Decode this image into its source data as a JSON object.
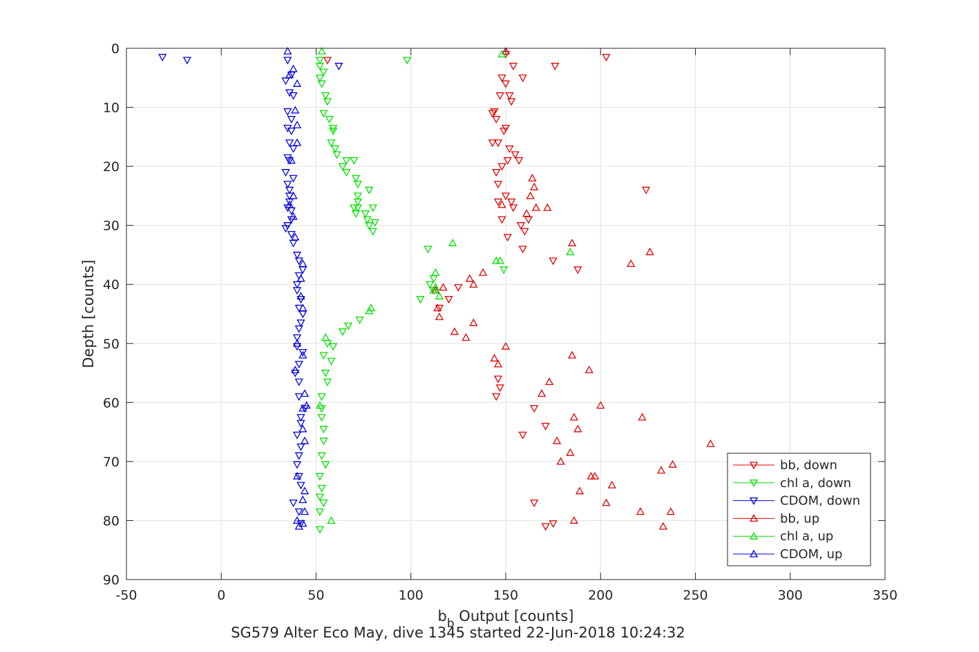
{
  "chart_data": {
    "type": "scatter",
    "title": "",
    "xlabel_main": "b",
    "xlabel_sub": "b",
    "xlabel_rest": " Output [counts]",
    "ylabel": "Depth [counts]",
    "caption": "SG579 Alter Eco May, dive 1345 started 22-Jun-2018 10:24:32",
    "xlim": [
      -50,
      350
    ],
    "ylim": [
      0,
      90
    ],
    "y_reversed": true,
    "xticks": [
      -50,
      0,
      50,
      100,
      150,
      200,
      250,
      300,
      350
    ],
    "xtick_labels": [
      "-50",
      "0",
      "50",
      "100",
      "150",
      "200",
      "250",
      "300",
      "350"
    ],
    "yticks": [
      0,
      10,
      20,
      30,
      40,
      50,
      60,
      70,
      80,
      90
    ],
    "ytick_labels": [
      "0",
      "10",
      "20",
      "30",
      "40",
      "50",
      "60",
      "70",
      "80",
      "90"
    ],
    "grid": true,
    "legend_position": "lower-right",
    "series": [
      {
        "name": "bb, down",
        "color": "#e00000",
        "marker": "triangle-down",
        "points": [
          [
            56,
            2
          ],
          [
            203,
            1.5
          ],
          [
            176,
            3
          ],
          [
            150,
            1
          ],
          [
            154,
            3
          ],
          [
            159,
            5
          ],
          [
            148,
            5
          ],
          [
            150,
            6
          ],
          [
            152,
            8
          ],
          [
            147,
            8
          ],
          [
            153,
            9
          ],
          [
            144,
            10.7
          ],
          [
            143,
            11
          ],
          [
            145,
            12
          ],
          [
            150,
            13.5
          ],
          [
            149,
            14
          ],
          [
            146,
            16
          ],
          [
            143,
            16
          ],
          [
            152,
            17
          ],
          [
            155,
            18
          ],
          [
            157,
            19
          ],
          [
            151,
            19
          ],
          [
            148,
            20
          ],
          [
            145,
            21
          ],
          [
            146,
            23
          ],
          [
            224,
            24
          ],
          [
            150,
            25
          ],
          [
            153,
            26
          ],
          [
            146,
            26
          ],
          [
            154,
            27
          ],
          [
            148,
            29
          ],
          [
            162,
            29
          ],
          [
            158,
            30
          ],
          [
            160,
            31
          ],
          [
            151,
            32
          ],
          [
            159,
            34
          ],
          [
            175,
            36
          ],
          [
            188,
            37.5
          ],
          [
            125,
            40.5
          ],
          [
            120,
            42.5
          ],
          [
            115,
            44
          ],
          [
            146,
            56
          ],
          [
            147,
            57.5
          ],
          [
            145,
            59
          ],
          [
            165,
            61
          ],
          [
            171,
            64
          ],
          [
            159,
            65.5
          ],
          [
            165,
            77
          ],
          [
            171,
            81
          ],
          [
            175,
            80.5
          ]
        ]
      },
      {
        "name": "chl a, down",
        "color": "#00e000",
        "marker": "triangle-down",
        "points": [
          [
            98,
            2
          ],
          [
            52,
            2
          ],
          [
            52,
            3
          ],
          [
            54,
            4
          ],
          [
            52,
            5
          ],
          [
            53,
            6
          ],
          [
            55,
            8
          ],
          [
            56,
            9
          ],
          [
            54,
            11
          ],
          [
            57,
            12
          ],
          [
            59,
            13.5
          ],
          [
            59,
            14
          ],
          [
            58,
            16
          ],
          [
            60,
            17
          ],
          [
            61,
            18
          ],
          [
            66,
            19
          ],
          [
            70,
            19
          ],
          [
            64,
            20
          ],
          [
            66,
            21
          ],
          [
            71,
            22
          ],
          [
            72,
            23
          ],
          [
            78,
            24
          ],
          [
            72,
            25
          ],
          [
            72,
            26
          ],
          [
            72,
            27
          ],
          [
            70,
            27
          ],
          [
            80,
            27
          ],
          [
            71,
            28
          ],
          [
            76,
            28
          ],
          [
            77,
            29
          ],
          [
            78,
            30
          ],
          [
            81,
            29.5
          ],
          [
            80,
            31
          ],
          [
            109,
            34
          ],
          [
            149,
            37.5
          ],
          [
            112,
            39
          ],
          [
            110,
            40
          ],
          [
            112,
            41
          ],
          [
            105,
            42.5
          ],
          [
            73,
            46
          ],
          [
            67,
            47
          ],
          [
            64,
            48
          ],
          [
            56,
            50
          ],
          [
            59,
            50.5
          ],
          [
            54,
            52
          ],
          [
            58,
            53
          ],
          [
            55,
            55
          ],
          [
            56,
            56.5
          ],
          [
            53,
            59
          ],
          [
            53,
            61
          ],
          [
            53,
            62.5
          ],
          [
            54,
            64.5
          ],
          [
            54,
            66.5
          ],
          [
            53,
            69
          ],
          [
            55,
            70.5
          ],
          [
            52,
            72.5
          ],
          [
            53,
            74.5
          ],
          [
            52,
            76
          ],
          [
            54,
            77
          ],
          [
            52,
            78.5
          ],
          [
            52,
            81.5
          ]
        ]
      },
      {
        "name": "CDOM, down",
        "color": "#0000dd",
        "marker": "triangle-down",
        "points": [
          [
            -31,
            1.5
          ],
          [
            -18,
            2
          ],
          [
            62,
            3
          ],
          [
            35,
            2
          ],
          [
            37,
            4.5
          ],
          [
            34,
            5.5
          ],
          [
            36,
            7.5
          ],
          [
            38,
            8
          ],
          [
            35,
            10.7
          ],
          [
            37,
            12
          ],
          [
            35,
            13.5
          ],
          [
            37,
            14
          ],
          [
            36,
            16
          ],
          [
            38,
            17
          ],
          [
            35,
            18.5
          ],
          [
            36,
            19
          ],
          [
            34,
            21
          ],
          [
            38,
            22
          ],
          [
            35,
            23
          ],
          [
            36,
            24
          ],
          [
            36,
            25
          ],
          [
            36,
            26
          ],
          [
            35,
            27
          ],
          [
            37,
            27.5
          ],
          [
            37,
            29
          ],
          [
            35,
            30
          ],
          [
            34,
            30.5
          ],
          [
            37,
            31.5
          ],
          [
            38,
            33
          ],
          [
            40,
            35
          ],
          [
            41,
            36
          ],
          [
            43,
            37.5
          ],
          [
            41,
            38.5
          ],
          [
            40,
            40
          ],
          [
            40,
            41
          ],
          [
            42,
            42.5
          ],
          [
            41,
            44
          ],
          [
            43,
            45
          ],
          [
            42,
            46.5
          ],
          [
            41,
            47.5
          ],
          [
            40,
            49
          ],
          [
            40,
            50.5
          ],
          [
            43,
            51.5
          ],
          [
            41,
            53.5
          ],
          [
            39,
            55
          ],
          [
            41,
            56.5
          ],
          [
            41,
            59
          ],
          [
            44,
            61
          ],
          [
            42,
            62.5
          ],
          [
            42,
            63.5
          ],
          [
            40,
            65.5
          ],
          [
            42,
            67.5
          ],
          [
            41,
            69
          ],
          [
            40,
            70.5
          ],
          [
            41,
            72.5
          ],
          [
            42,
            74
          ],
          [
            38,
            77
          ],
          [
            41,
            78.5
          ],
          [
            42,
            80.5
          ]
        ]
      },
      {
        "name": "bb, up",
        "color": "#e00000",
        "marker": "triangle-up",
        "points": [
          [
            150,
            0.5
          ],
          [
            164,
            22
          ],
          [
            165,
            23.5
          ],
          [
            163,
            25
          ],
          [
            166,
            27
          ],
          [
            148,
            26.5
          ],
          [
            172,
            27
          ],
          [
            161,
            28
          ],
          [
            185,
            33
          ],
          [
            226,
            34.5
          ],
          [
            216,
            36.5
          ],
          [
            138,
            38
          ],
          [
            131,
            39
          ],
          [
            133,
            40
          ],
          [
            117,
            40.5
          ],
          [
            113,
            41
          ],
          [
            114,
            44
          ],
          [
            115,
            45.5
          ],
          [
            133,
            46.5
          ],
          [
            123,
            48
          ],
          [
            129,
            49
          ],
          [
            150,
            50.5
          ],
          [
            144,
            52.5
          ],
          [
            146,
            53.5
          ],
          [
            185,
            52
          ],
          [
            194,
            54.5
          ],
          [
            173,
            56.5
          ],
          [
            169,
            58.5
          ],
          [
            200,
            60.5
          ],
          [
            186,
            62.5
          ],
          [
            188,
            64.5
          ],
          [
            222,
            62.5
          ],
          [
            177,
            66.5
          ],
          [
            258,
            67
          ],
          [
            184,
            68.5
          ],
          [
            179,
            70
          ],
          [
            238,
            70.5
          ],
          [
            232,
            71.5
          ],
          [
            195,
            72.5
          ],
          [
            197,
            72.5
          ],
          [
            206,
            74
          ],
          [
            189,
            75
          ],
          [
            203,
            77
          ],
          [
            221,
            78.5
          ],
          [
            237,
            78.5
          ],
          [
            186,
            80
          ],
          [
            233,
            81
          ]
        ]
      },
      {
        "name": "chl a, up",
        "color": "#00e000",
        "marker": "triangle-up",
        "points": [
          [
            53,
            0.5
          ],
          [
            148,
            1
          ],
          [
            145,
            36
          ],
          [
            147,
            36
          ],
          [
            122,
            33
          ],
          [
            184,
            34.5
          ],
          [
            113,
            38
          ],
          [
            113,
            40.5
          ],
          [
            112,
            41
          ],
          [
            115,
            42
          ],
          [
            79,
            44
          ],
          [
            78,
            44.5
          ],
          [
            55,
            49
          ],
          [
            52,
            60.5
          ],
          [
            58,
            80
          ]
        ]
      },
      {
        "name": "CDOM, up",
        "color": "#0000dd",
        "marker": "triangle-up",
        "points": [
          [
            35,
            0.5
          ],
          [
            38,
            3.5
          ],
          [
            36,
            4.5
          ],
          [
            40,
            6
          ],
          [
            39,
            10.5
          ],
          [
            40,
            13
          ],
          [
            40,
            16
          ],
          [
            37,
            19
          ],
          [
            38,
            25
          ],
          [
            36,
            26.5
          ],
          [
            38,
            28.5
          ],
          [
            39,
            32
          ],
          [
            43,
            36.5
          ],
          [
            42,
            39
          ],
          [
            42,
            42
          ],
          [
            43,
            44
          ],
          [
            40,
            50
          ],
          [
            43,
            52
          ],
          [
            39,
            54.5
          ],
          [
            44,
            58.5
          ],
          [
            45,
            60.5
          ],
          [
            43,
            61
          ],
          [
            43,
            64.5
          ],
          [
            44,
            66.5
          ],
          [
            40,
            72.5
          ],
          [
            44,
            75
          ],
          [
            43,
            76.5
          ],
          [
            44,
            78.5
          ],
          [
            40,
            80
          ],
          [
            43,
            80.5
          ],
          [
            41,
            81
          ]
        ]
      }
    ]
  }
}
